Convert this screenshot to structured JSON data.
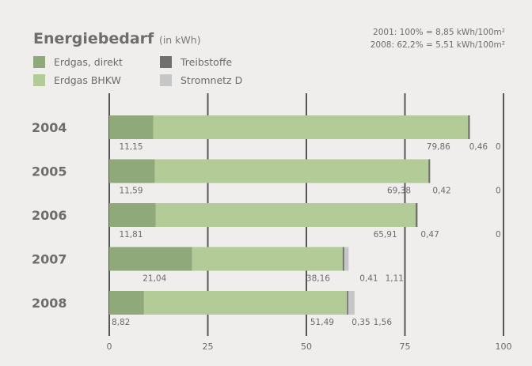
{
  "title": "Energiebedarf",
  "title_unit": "(in kWh)",
  "notes": [
    "2001:  100% = 8,85 kWh/100m²",
    "2008: 62,2% = 5,51 kWh/100m²"
  ],
  "colors": {
    "background": "#efeeed",
    "Erdgas, direkt": "#8fa97a",
    "Erdgas BHKW": "#b3cc97",
    "Treibstoffe": "#6f6f6f",
    "Stromnetz D": "#c6c6c6",
    "grid": "#555555",
    "text": "#6b6b6b"
  },
  "chart_data": {
    "type": "bar",
    "orientation": "horizontal",
    "stacked": true,
    "categories": [
      "2004",
      "2005",
      "2006",
      "2007",
      "2008"
    ],
    "xlim": [
      0,
      100
    ],
    "xticks": [
      "0",
      "25",
      "50",
      "75",
      "100"
    ],
    "grid": true,
    "legend_position": "top-left",
    "series": [
      {
        "name": "Erdgas, direkt",
        "values": [
          11.15,
          11.59,
          11.81,
          21.04,
          8.82
        ],
        "labels": [
          "11,15",
          "11,59",
          "11,81",
          "21,04",
          "8,82"
        ]
      },
      {
        "name": "Erdgas BHKW",
        "values": [
          79.86,
          69.38,
          65.91,
          38.16,
          51.49
        ],
        "labels": [
          "79,86",
          "69,38",
          "65,91",
          "38,16",
          "51,49"
        ]
      },
      {
        "name": "Treibstoffe",
        "values": [
          0.46,
          0.42,
          0.47,
          0.41,
          0.35
        ],
        "labels": [
          "0,46",
          "0,42",
          "0,47",
          "0,41",
          "0,35"
        ]
      },
      {
        "name": "Stromnetz D",
        "values": [
          0,
          0,
          0,
          1.11,
          1.56
        ],
        "labels": [
          "0",
          "0",
          "0",
          "1,11",
          "1,56"
        ]
      }
    ]
  }
}
